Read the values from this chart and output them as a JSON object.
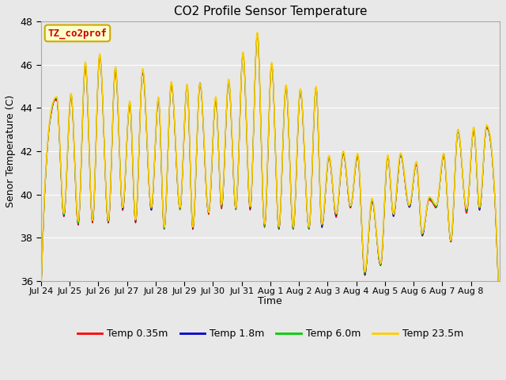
{
  "title": "CO2 Profile Sensor Temperature",
  "ylabel": "Senor Temperature (C)",
  "xlabel": "Time",
  "ylim": [
    36,
    48
  ],
  "yticks": [
    36,
    38,
    40,
    42,
    44,
    46,
    48
  ],
  "fig_facecolor": "#e8e8e8",
  "plot_bg_color": "#e8e8e8",
  "grid_color": "#ffffff",
  "legend_label": "TZ_co2prof",
  "legend_label_color": "#cc0000",
  "legend_box_facecolor": "#ffffcc",
  "legend_box_edgecolor": "#ccaa00",
  "series_labels": [
    "Temp 0.35m",
    "Temp 1.8m",
    "Temp 6.0m",
    "Temp 23.5m"
  ],
  "series_colors": [
    "#ff0000",
    "#0000cc",
    "#00cc00",
    "#ffcc00"
  ],
  "series_linewidths": [
    0.8,
    0.8,
    0.8,
    1.2
  ],
  "xtick_labels": [
    "Jul 24",
    "Jul 25",
    "Jul 26",
    "Jul 27",
    "Jul 28",
    "Jul 29",
    "Jul 30",
    "Jul 31",
    "Aug 1",
    "Aug 2",
    "Aug 3",
    "Aug 4",
    "Aug 5",
    "Aug 6",
    "Aug 7",
    "Aug 8"
  ],
  "num_days": 16,
  "points_per_day": 96,
  "peak_times": [
    0.55,
    1.05,
    1.55,
    2.05,
    2.6,
    3.1,
    3.55,
    4.1,
    4.55,
    5.1,
    5.55,
    6.1,
    6.55,
    7.05,
    7.55,
    8.05,
    8.55,
    9.05,
    9.6,
    10.05,
    10.55,
    11.05,
    11.55,
    12.1,
    12.55,
    13.1,
    13.55,
    14.05,
    14.55,
    15.1,
    15.55
  ],
  "peak_vals": [
    44.5,
    44.7,
    46.1,
    46.5,
    45.9,
    44.3,
    45.8,
    44.5,
    45.2,
    45.1,
    45.2,
    44.5,
    45.3,
    46.6,
    47.5,
    46.1,
    45.1,
    44.9,
    45.0,
    41.8,
    42.0,
    41.9,
    39.8,
    41.8,
    41.9,
    41.5,
    39.9,
    41.9,
    43.0,
    43.1,
    43.2
  ],
  "trough_times": [
    0.05,
    0.8,
    1.3,
    1.8,
    2.35,
    2.85,
    3.3,
    3.85,
    4.3,
    4.85,
    5.3,
    5.85,
    6.3,
    6.8,
    7.3,
    7.8,
    8.3,
    8.8,
    9.35,
    9.8,
    10.3,
    10.8,
    11.3,
    11.85,
    12.3,
    12.85,
    13.3,
    13.8,
    14.3,
    14.85,
    15.3,
    15.85
  ],
  "trough_vals": [
    37.5,
    39.1,
    38.7,
    38.8,
    38.8,
    39.4,
    38.8,
    39.4,
    38.5,
    39.4,
    38.5,
    39.2,
    39.5,
    39.4,
    39.4,
    38.6,
    38.5,
    38.5,
    38.5,
    38.6,
    39.1,
    39.5,
    36.4,
    36.8,
    39.1,
    39.5,
    38.2,
    39.5,
    37.9,
    39.3,
    39.4,
    39.5
  ],
  "noise_scale": 0.08
}
